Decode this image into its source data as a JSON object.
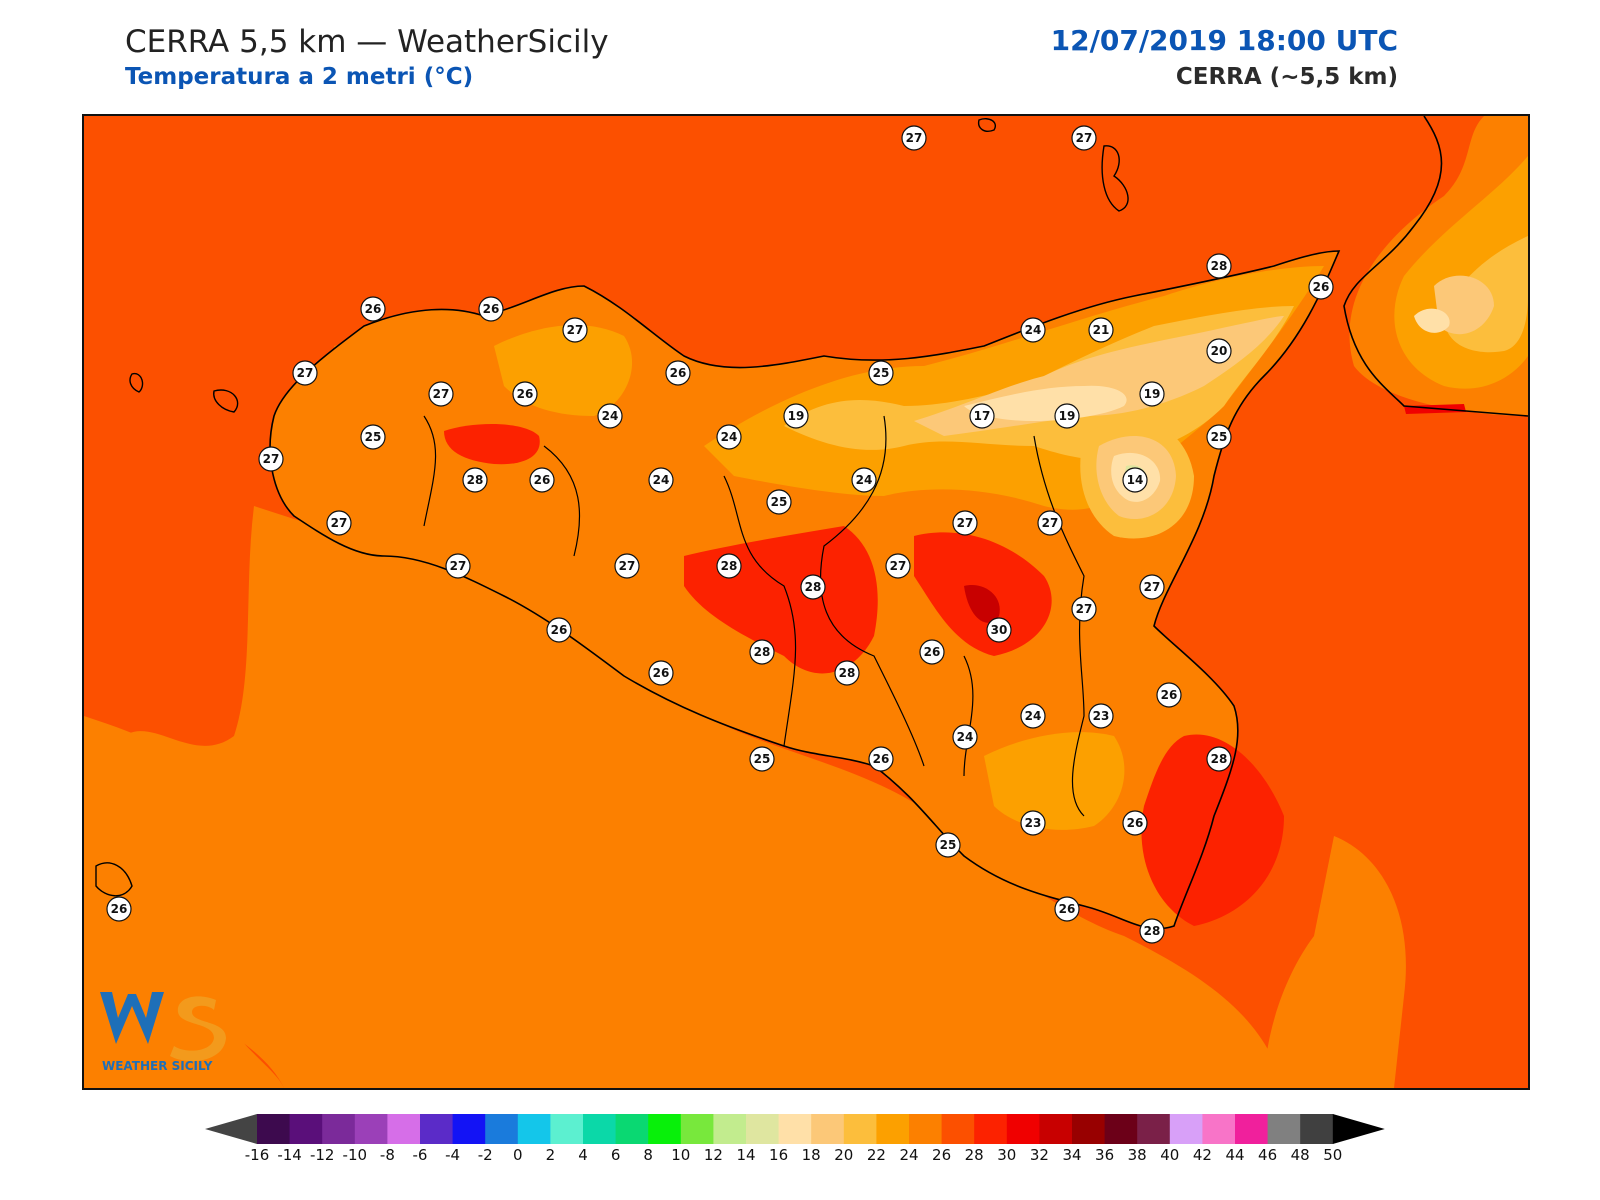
{
  "header": {
    "title": "CERRA 5,5 km — WeatherSicily",
    "subtitle": "Temperatura a 2 metri (°C)",
    "datetime": "12/07/2019 18:00 UTC",
    "model": "CERRA (~5,5 km)"
  },
  "logo": {
    "text": "WEATHER SICILY",
    "mark": "WS"
  },
  "colorbar": {
    "ticks": [
      "-16",
      "-14",
      "-12",
      "-10",
      "-8",
      "-6",
      "-4",
      "-2",
      "0",
      "2",
      "4",
      "6",
      "8",
      "10",
      "12",
      "14",
      "16",
      "18",
      "20",
      "22",
      "24",
      "26",
      "28",
      "30",
      "32",
      "34",
      "36",
      "38",
      "40",
      "42",
      "44",
      "46",
      "48",
      "50"
    ],
    "colors": [
      "#3d0a4e",
      "#5a0f7a",
      "#7b2a9a",
      "#9b40b8",
      "#d66ee8",
      "#5b2bc8",
      "#1313f5",
      "#1a7bdc",
      "#14c6ea",
      "#5cf0d0",
      "#0bd8a8",
      "#0ad872",
      "#08f00a",
      "#78e83c",
      "#c2ec8e",
      "#dfe6a0",
      "#ffe0a8",
      "#fcc878",
      "#fcbe3c",
      "#fca000",
      "#fc8000",
      "#fc5000",
      "#fc2200",
      "#f00000",
      "#c80000",
      "#980000",
      "#6c0018",
      "#7a2048",
      "#d8a0f8",
      "#f874c8",
      "#f0209c",
      "#808080",
      "#404040"
    ],
    "extend_low": "#444444",
    "extend_high": "#000000"
  },
  "stations": [
    {
      "v": "27",
      "lon": 830,
      "lat": 22
    },
    {
      "v": "27",
      "lon": 1000,
      "lat": 22
    },
    {
      "v": "28",
      "lon": 1135,
      "lat": 150
    },
    {
      "v": "26",
      "lon": 1237,
      "lat": 171
    },
    {
      "v": "26",
      "lon": 289,
      "lat": 193
    },
    {
      "v": "26",
      "lon": 407,
      "lat": 193
    },
    {
      "v": "27",
      "lon": 491,
      "lat": 214
    },
    {
      "v": "24",
      "lon": 949,
      "lat": 214
    },
    {
      "v": "21",
      "lon": 1017,
      "lat": 214
    },
    {
      "v": "20",
      "lon": 1135,
      "lat": 235
    },
    {
      "v": "27",
      "lon": 221,
      "lat": 257
    },
    {
      "v": "26",
      "lon": 594,
      "lat": 257
    },
    {
      "v": "25",
      "lon": 797,
      "lat": 257
    },
    {
      "v": "27",
      "lon": 357,
      "lat": 278
    },
    {
      "v": "26",
      "lon": 441,
      "lat": 278
    },
    {
      "v": "19",
      "lon": 1068,
      "lat": 278
    },
    {
      "v": "24",
      "lon": 526,
      "lat": 300
    },
    {
      "v": "19",
      "lon": 712,
      "lat": 300
    },
    {
      "v": "17",
      "lon": 898,
      "lat": 300
    },
    {
      "v": "19",
      "lon": 983,
      "lat": 300
    },
    {
      "v": "25",
      "lon": 289,
      "lat": 321
    },
    {
      "v": "24",
      "lon": 645,
      "lat": 321
    },
    {
      "v": "25",
      "lon": 1135,
      "lat": 321
    },
    {
      "v": "27",
      "lon": 187,
      "lat": 343
    },
    {
      "v": "28",
      "lon": 391,
      "lat": 364
    },
    {
      "v": "26",
      "lon": 458,
      "lat": 364
    },
    {
      "v": "24",
      "lon": 577,
      "lat": 364
    },
    {
      "v": "24",
      "lon": 780,
      "lat": 364
    },
    {
      "v": "14",
      "lon": 1051,
      "lat": 364
    },
    {
      "v": "25",
      "lon": 695,
      "lat": 386
    },
    {
      "v": "27",
      "lon": 255,
      "lat": 407
    },
    {
      "v": "27",
      "lon": 881,
      "lat": 407
    },
    {
      "v": "27",
      "lon": 966,
      "lat": 407
    },
    {
      "v": "27",
      "lon": 374,
      "lat": 450
    },
    {
      "v": "27",
      "lon": 543,
      "lat": 450
    },
    {
      "v": "28",
      "lon": 645,
      "lat": 450
    },
    {
      "v": "27",
      "lon": 814,
      "lat": 450
    },
    {
      "v": "28",
      "lon": 729,
      "lat": 471
    },
    {
      "v": "27",
      "lon": 1068,
      "lat": 471
    },
    {
      "v": "27",
      "lon": 1000,
      "lat": 493
    },
    {
      "v": "26",
      "lon": 475,
      "lat": 514
    },
    {
      "v": "30",
      "lon": 915,
      "lat": 514
    },
    {
      "v": "28",
      "lon": 678,
      "lat": 536
    },
    {
      "v": "26",
      "lon": 848,
      "lat": 536
    },
    {
      "v": "28",
      "lon": 763,
      "lat": 557
    },
    {
      "v": "26",
      "lon": 577,
      "lat": 557
    },
    {
      "v": "26",
      "lon": 1085,
      "lat": 579
    },
    {
      "v": "24",
      "lon": 949,
      "lat": 600
    },
    {
      "v": "23",
      "lon": 1017,
      "lat": 600
    },
    {
      "v": "24",
      "lon": 881,
      "lat": 621
    },
    {
      "v": "25",
      "lon": 678,
      "lat": 643
    },
    {
      "v": "26",
      "lon": 797,
      "lat": 643
    },
    {
      "v": "28",
      "lon": 1135,
      "lat": 643
    },
    {
      "v": "23",
      "lon": 949,
      "lat": 707
    },
    {
      "v": "26",
      "lon": 1051,
      "lat": 707
    },
    {
      "v": "25",
      "lon": 864,
      "lat": 729
    },
    {
      "v": "26",
      "lon": 983,
      "lat": 793
    },
    {
      "v": "26",
      "lon": 35,
      "lat": 793
    },
    {
      "v": "28",
      "lon": 1068,
      "lat": 815
    }
  ]
}
